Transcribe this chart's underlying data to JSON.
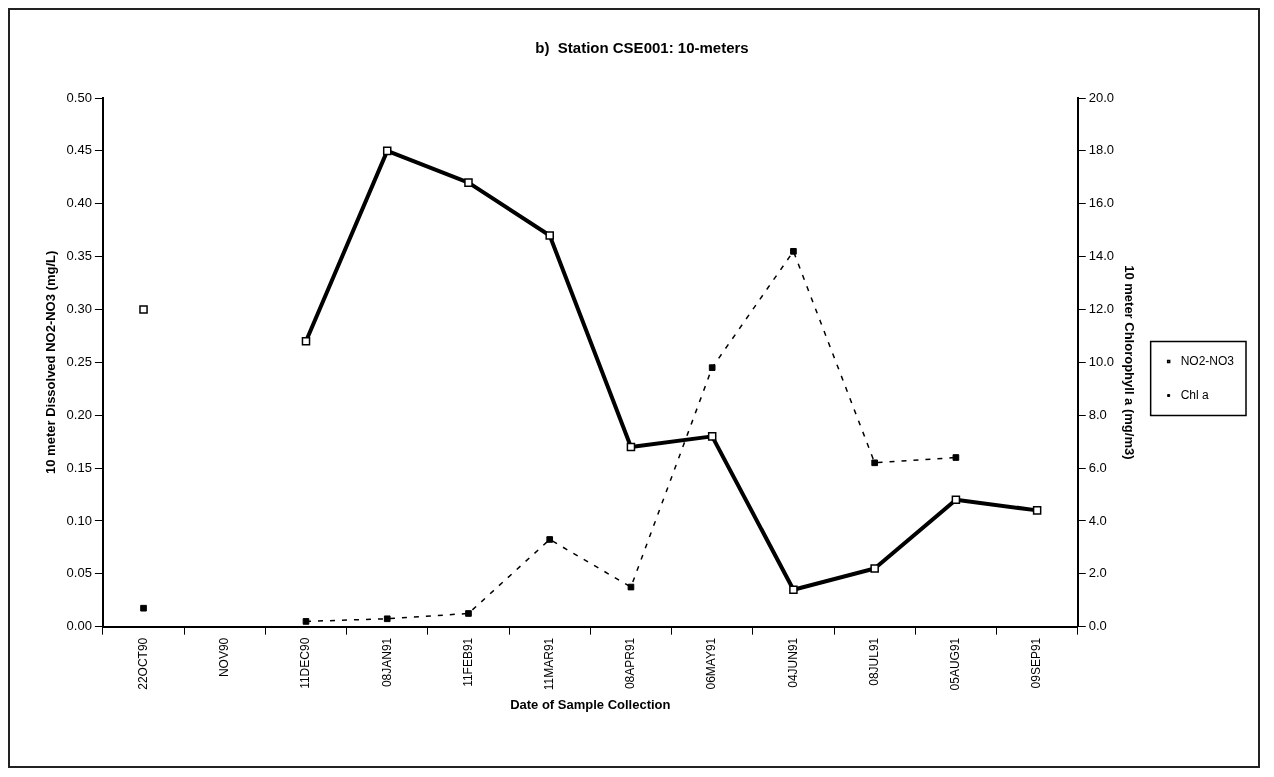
{
  "chart_data": {
    "type": "line",
    "title": "b)  Station CSE001: 10-meters",
    "xlabel": "Date of Sample Collection",
    "ylabel": "10 meter Dissolved NO2-NO3 (mg/L)",
    "y2label": "10 meter Chlorophyll a (mg/m3)",
    "categories": [
      "22OCT90",
      "NOV90",
      "11DEC90",
      "08JAN91",
      "11FEB91",
      "11MAR91",
      "08APR91",
      "06MAY91",
      "04JUN91",
      "08JUL91",
      "05AUG91",
      "09SEP91"
    ],
    "series": [
      {
        "name": "NO2-NO3",
        "color": "#000000",
        "line_style": "solid",
        "values": [
          0.3,
          null,
          0.27,
          0.45,
          0.42,
          0.37,
          0.17,
          0.18,
          0.035,
          0.055,
          0.12,
          0.11
        ]
      },
      {
        "name": "Chl a",
        "color": "#000000",
        "line_style": "dashed",
        "axis": "y2",
        "values": [
          0.7,
          null,
          0.2,
          0.3,
          0.5,
          3.3,
          1.5,
          9.8,
          14.2,
          6.2,
          6.4,
          null
        ]
      }
    ],
    "ylim": [
      0,
      0.5
    ],
    "yticks": [
      {
        "value": 0,
        "label": "0.00"
      },
      {
        "value": 0.05,
        "label": "0.05"
      },
      {
        "value": 0.1,
        "label": "0.10"
      },
      {
        "value": 0.15,
        "label": "0.15"
      },
      {
        "value": 0.2,
        "label": "0.20"
      },
      {
        "value": 0.25,
        "label": "0.25"
      },
      {
        "value": 0.3,
        "label": "0.30"
      },
      {
        "value": 0.35,
        "label": "0.35"
      },
      {
        "value": 0.4,
        "label": "0.40"
      },
      {
        "value": 0.45,
        "label": "0.45"
      },
      {
        "value": 0.5,
        "label": "0.50"
      }
    ],
    "y2lim": [
      0,
      20
    ],
    "y2ticks": [
      {
        "value": 0,
        "label": "0.0"
      },
      {
        "value": 2,
        "label": "2.0"
      },
      {
        "value": 4,
        "label": "4.0"
      },
      {
        "value": 6,
        "label": "6.0"
      },
      {
        "value": 8,
        "label": "8.0"
      },
      {
        "value": 10,
        "label": "10.0"
      },
      {
        "value": 12,
        "label": "12.0"
      },
      {
        "value": 14,
        "label": "14.0"
      },
      {
        "value": 16,
        "label": "16.0"
      },
      {
        "value": 18,
        "label": "18.0"
      },
      {
        "value": 20,
        "label": "20.0"
      }
    ],
    "marker": "square",
    "grid": false,
    "legend": "right"
  }
}
